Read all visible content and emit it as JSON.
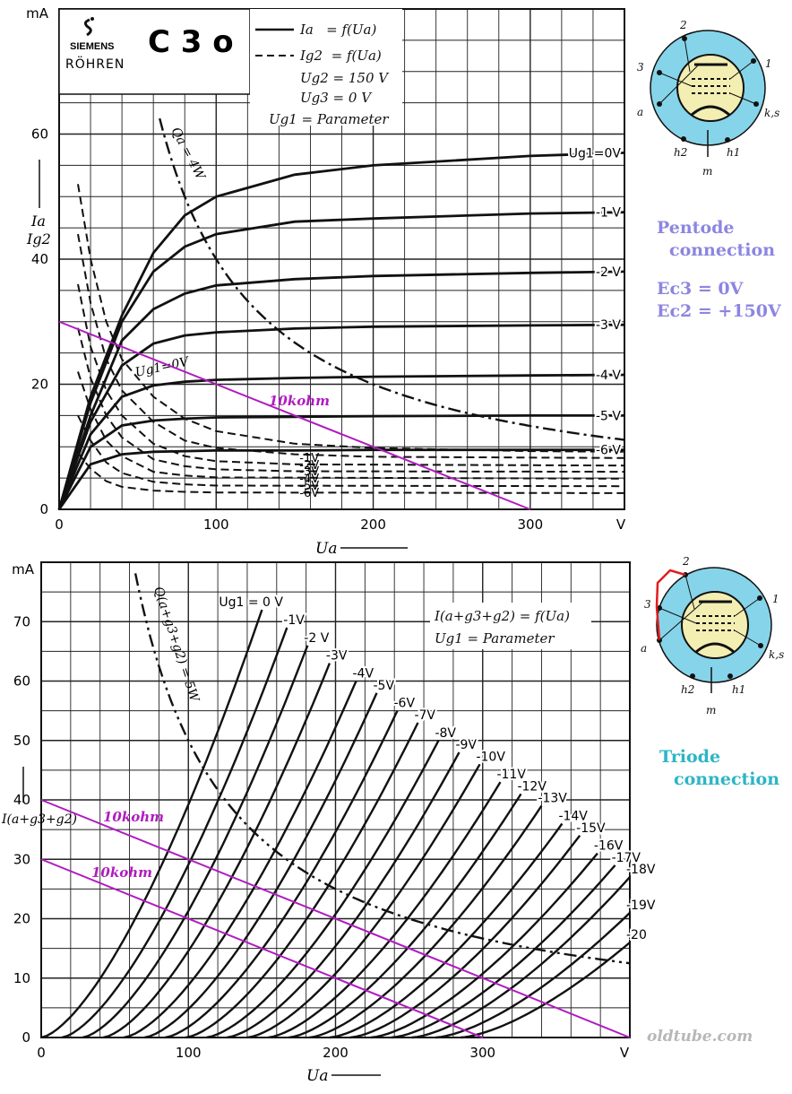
{
  "header": {
    "brand_line1": "SIEMENS",
    "brand_line2": "RÖHREN",
    "tube_type": "C 3 o"
  },
  "pentode_legend": {
    "line1": "Ia   = f(Ua)",
    "line2": "Ig2  = f(Ua)",
    "line3": "Ug2 = 150 V",
    "line4": "Ug3 = 0 V",
    "line5": "Ug1 = Parameter"
  },
  "triode_legend": {
    "line1": "I(a+g3+g2) = f(Ua)",
    "line2": "Ug1 = Parameter"
  },
  "side_notes": {
    "pentode_title_1": "Pentode",
    "pentode_title_2": "connection",
    "pentode_cond_1": "Ec3 = 0V",
    "pentode_cond_2": "Ec2 = +150V",
    "triode_title_1": "Triode",
    "triode_title_2": "connection"
  },
  "pin_labels": {
    "pin2": "2",
    "pin3": "3",
    "pin1": "1",
    "a": "a",
    "ks": "k,s",
    "h2": "h2",
    "h1": "h1",
    "m": "m"
  },
  "credit": "oldtube.com",
  "colors": {
    "curve": "#111111",
    "load_line": "#b01cc0",
    "load_label": "#b01cc0",
    "tube_glass": "#f3eeb2",
    "socket_ring": "#86d4ea",
    "strap_wire": "#e01d1d",
    "pentode_note": "#8c86e0",
    "triode_note": "#2cb5c5"
  },
  "chart_data": [
    {
      "type": "line",
      "title": "C 3 o",
      "xlabel": "Ua",
      "ylabel": "Ia Ig2",
      "x_unit": "V",
      "y_unit": "mA",
      "xlim": [
        0,
        360
      ],
      "ylim": [
        0,
        80
      ],
      "x_ticks": [
        0,
        100,
        200,
        300
      ],
      "y_ticks": [
        0,
        20,
        40,
        60
      ],
      "x_tick_labels": [
        "0",
        "100",
        "200",
        "300",
        "V"
      ],
      "y_tick_labels": [
        "0",
        "20",
        "40",
        "60",
        "mA"
      ],
      "grid": true,
      "series_anode": [
        {
          "name": "Ug1=0V",
          "label": "Ug1=0V",
          "sat": 57,
          "knee": 38,
          "values": [
            [
              0,
              0
            ],
            [
              20,
              18
            ],
            [
              40,
              31
            ],
            [
              60,
              41
            ],
            [
              80,
              47
            ],
            [
              100,
              50
            ],
            [
              150,
              53.5
            ],
            [
              200,
              55
            ],
            [
              300,
              56.5
            ],
            [
              360,
              57
            ]
          ]
        },
        {
          "name": "-1 V",
          "label": "-1 V",
          "sat": 47.5,
          "knee": 30,
          "values": [
            [
              0,
              0
            ],
            [
              20,
              17
            ],
            [
              40,
              30
            ],
            [
              60,
              38
            ],
            [
              80,
              42
            ],
            [
              100,
              44
            ],
            [
              150,
              46
            ],
            [
              200,
              46.5
            ],
            [
              300,
              47.3
            ],
            [
              360,
              47.5
            ]
          ]
        },
        {
          "name": "-2 V",
          "label": "-2 V",
          "sat": 38,
          "knee": 25,
          "values": [
            [
              0,
              0
            ],
            [
              20,
              15
            ],
            [
              40,
              27
            ],
            [
              60,
              32
            ],
            [
              80,
              34.5
            ],
            [
              100,
              35.8
            ],
            [
              150,
              36.8
            ],
            [
              200,
              37.3
            ],
            [
              300,
              37.8
            ],
            [
              360,
              38
            ]
          ]
        },
        {
          "name": "-3 V",
          "label": "-3 V",
          "sat": 29.5,
          "knee": 20,
          "values": [
            [
              0,
              0
            ],
            [
              20,
              14
            ],
            [
              40,
              23
            ],
            [
              60,
              26.5
            ],
            [
              80,
              27.8
            ],
            [
              100,
              28.3
            ],
            [
              150,
              28.9
            ],
            [
              200,
              29.2
            ],
            [
              300,
              29.4
            ],
            [
              360,
              29.5
            ]
          ]
        },
        {
          "name": "-4 V",
          "label": "-4 V",
          "sat": 21.5,
          "knee": 16,
          "values": [
            [
              0,
              0
            ],
            [
              20,
              12
            ],
            [
              40,
              18
            ],
            [
              60,
              19.8
            ],
            [
              80,
              20.4
            ],
            [
              100,
              20.7
            ],
            [
              150,
              21
            ],
            [
              200,
              21.2
            ],
            [
              300,
              21.4
            ],
            [
              360,
              21.5
            ]
          ]
        },
        {
          "name": "-5 V",
          "label": "-5 V",
          "sat": 15,
          "knee": 12,
          "values": [
            [
              0,
              0
            ],
            [
              20,
              10
            ],
            [
              40,
              13.4
            ],
            [
              60,
              14.2
            ],
            [
              80,
              14.5
            ],
            [
              100,
              14.7
            ],
            [
              150,
              14.8
            ],
            [
              200,
              14.9
            ],
            [
              300,
              15
            ],
            [
              360,
              15
            ]
          ]
        },
        {
          "name": "-6 V",
          "label": "-6 V",
          "sat": 9.5,
          "knee": 8,
          "values": [
            [
              0,
              0
            ],
            [
              20,
              7.2
            ],
            [
              40,
              8.8
            ],
            [
              60,
              9.2
            ],
            [
              80,
              9.3
            ],
            [
              100,
              9.4
            ],
            [
              150,
              9.4
            ],
            [
              200,
              9.5
            ],
            [
              300,
              9.5
            ],
            [
              360,
              9.5
            ]
          ]
        }
      ],
      "series_screen": [
        {
          "name": "Ug1=0V",
          "label": "Ug1=0V",
          "sat": 9.2,
          "values": [
            [
              12,
              52
            ],
            [
              20,
              40
            ],
            [
              30,
              30
            ],
            [
              40,
              24
            ],
            [
              60,
              18
            ],
            [
              80,
              14.5
            ],
            [
              100,
              12.5
            ],
            [
              150,
              10.5
            ],
            [
              200,
              9.8
            ],
            [
              300,
              9.3
            ],
            [
              360,
              9.2
            ]
          ]
        },
        {
          "name": "-1V",
          "label": "-1V",
          "sat": 8.2,
          "values": [
            [
              12,
              44
            ],
            [
              20,
              33
            ],
            [
              30,
              24
            ],
            [
              40,
              19
            ],
            [
              60,
              14
            ],
            [
              80,
              11
            ],
            [
              100,
              9.8
            ],
            [
              150,
              8.8
            ],
            [
              200,
              8.4
            ],
            [
              360,
              8.2
            ]
          ]
        },
        {
          "name": "-2V",
          "label": "-2V",
          "sat": 7,
          "values": [
            [
              12,
              36
            ],
            [
              20,
              26
            ],
            [
              30,
              19
            ],
            [
              40,
              15
            ],
            [
              60,
              10.5
            ],
            [
              80,
              8.5
            ],
            [
              100,
              7.7
            ],
            [
              150,
              7.2
            ],
            [
              360,
              7
            ]
          ]
        },
        {
          "name": "-3V",
          "label": "-3V",
          "sat": 6,
          "values": [
            [
              12,
              29
            ],
            [
              20,
              21
            ],
            [
              30,
              15
            ],
            [
              40,
              11.5
            ],
            [
              60,
              8
            ],
            [
              80,
              6.9
            ],
            [
              100,
              6.4
            ],
            [
              150,
              6.1
            ],
            [
              360,
              6
            ]
          ]
        },
        {
          "name": "-4V",
          "label": "-4V",
          "sat": 4.9,
          "values": [
            [
              12,
              22
            ],
            [
              20,
              16
            ],
            [
              30,
              11
            ],
            [
              40,
              8.5
            ],
            [
              60,
              6
            ],
            [
              80,
              5.4
            ],
            [
              100,
              5.1
            ],
            [
              360,
              4.9
            ]
          ]
        },
        {
          "name": "-5V",
          "label": "-5V",
          "sat": 3.7,
          "values": [
            [
              12,
              15
            ],
            [
              20,
              11
            ],
            [
              30,
              7.5
            ],
            [
              40,
              5.8
            ],
            [
              60,
              4.4
            ],
            [
              80,
              4
            ],
            [
              100,
              3.8
            ],
            [
              360,
              3.7
            ]
          ]
        },
        {
          "name": "-6V",
          "label": "-6V",
          "sat": 2.6,
          "values": [
            [
              12,
              9
            ],
            [
              20,
              6.5
            ],
            [
              30,
              4.5
            ],
            [
              40,
              3.6
            ],
            [
              60,
              3
            ],
            [
              80,
              2.8
            ],
            [
              100,
              2.7
            ],
            [
              360,
              2.6
            ]
          ]
        }
      ],
      "dissipation": {
        "label": "Qa = 4W",
        "watts": 4
      },
      "load_line": {
        "label": "10kohm",
        "points": [
          [
            0,
            30
          ],
          [
            300,
            0
          ]
        ]
      }
    },
    {
      "type": "line",
      "title": "",
      "xlabel": "Ua",
      "ylabel": "I(a+g3+g2)",
      "x_unit": "V",
      "y_unit": "mA",
      "xlim": [
        0,
        400
      ],
      "ylim": [
        0,
        80
      ],
      "x_ticks": [
        0,
        100,
        200,
        300
      ],
      "y_ticks": [
        0,
        10,
        20,
        30,
        40,
        50,
        60,
        70
      ],
      "x_tick_labels": [
        "0",
        "100",
        "200",
        "300",
        "V"
      ],
      "y_tick_labels": [
        "0",
        "10",
        "20",
        "30",
        "40",
        "50",
        "60",
        "70",
        "mA"
      ],
      "grid": true,
      "series": [
        {
          "name": "Ug1 = 0 V",
          "label": "Ug1 = 0 V",
          "cutoff": 0,
          "end": [
            150,
            72
          ]
        },
        {
          "name": "-1V",
          "label": "-1V",
          "cutoff": 14,
          "end": [
            167,
            69
          ]
        },
        {
          "name": "-2 V",
          "label": "-2 V",
          "cutoff": 28,
          "end": [
            181,
            66
          ]
        },
        {
          "name": "-3V",
          "label": "-3V",
          "cutoff": 42,
          "end": [
            196,
            63
          ]
        },
        {
          "name": "-4V",
          "label": "-4V",
          "cutoff": 56,
          "end": [
            214,
            60
          ]
        },
        {
          "name": "-5V",
          "label": "-5V",
          "cutoff": 70,
          "end": [
            228,
            58
          ]
        },
        {
          "name": "-6V",
          "label": "-6V",
          "cutoff": 84,
          "end": [
            242,
            55
          ]
        },
        {
          "name": "-7V",
          "label": "-7V",
          "cutoff": 98,
          "end": [
            256,
            53
          ]
        },
        {
          "name": "-8V",
          "label": "-8V",
          "cutoff": 112,
          "end": [
            270,
            50
          ]
        },
        {
          "name": "-9V",
          "label": "-9V",
          "cutoff": 126,
          "end": [
            284,
            48
          ]
        },
        {
          "name": "-10V",
          "label": "-10V",
          "cutoff": 140,
          "end": [
            298,
            46
          ]
        },
        {
          "name": "-11V",
          "label": "-11V",
          "cutoff": 154,
          "end": [
            312,
            43
          ]
        },
        {
          "name": "-12V",
          "label": "-12V",
          "cutoff": 168,
          "end": [
            326,
            41
          ]
        },
        {
          "name": "-13V",
          "label": "-13V",
          "cutoff": 182,
          "end": [
            340,
            39
          ]
        },
        {
          "name": "-14V",
          "label": "-14V",
          "cutoff": 196,
          "end": [
            354,
            36
          ]
        },
        {
          "name": "-15V",
          "label": "-15V",
          "cutoff": 210,
          "end": [
            366,
            34
          ]
        },
        {
          "name": "-16V",
          "label": "-16V",
          "cutoff": 224,
          "end": [
            378,
            31
          ]
        },
        {
          "name": "-17V",
          "label": "-17V",
          "cutoff": 238,
          "end": [
            390,
            29
          ]
        },
        {
          "name": "-18V",
          "label": "-18V",
          "cutoff": 252,
          "end": [
            400,
            27
          ]
        },
        {
          "name": "-19V",
          "label": "-19V",
          "cutoff": 268,
          "end": [
            400,
            21
          ]
        },
        {
          "name": "-20",
          "label": "-20",
          "cutoff": 285,
          "end": [
            400,
            16
          ]
        }
      ],
      "dissipation": {
        "label": "Q(a+g3+g2) = 5W",
        "watts": 5
      },
      "load_lines": [
        {
          "label": "10kohm",
          "points": [
            [
              0,
              40
            ],
            [
              400,
              0
            ]
          ]
        },
        {
          "label": "10kohm",
          "points": [
            [
              0,
              30
            ],
            [
              300,
              0
            ]
          ]
        }
      ]
    }
  ]
}
